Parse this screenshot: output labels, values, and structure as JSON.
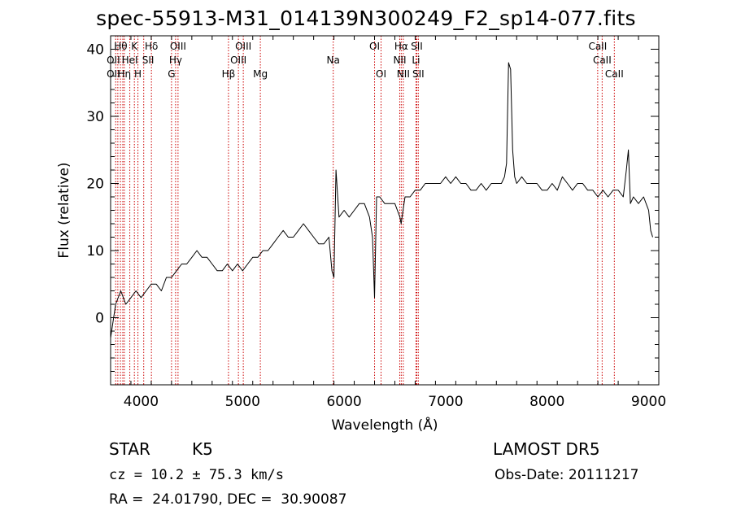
{
  "chart_data": {
    "type": "line",
    "title": "spec-55913-M31_014139N300249_F2_sp14-077.fits",
    "xlabel": "Wavelength (Å)",
    "ylabel": "Flux (relative)",
    "xlim": [
      3700,
      9100
    ],
    "ylim": [
      -10,
      42
    ],
    "xticks": [
      4000,
      5000,
      6000,
      7000,
      8000,
      9000
    ],
    "yticks": [
      0,
      10,
      20,
      30,
      40
    ],
    "grid": false,
    "series": [
      {
        "x": [
          3700,
          3750,
          3800,
          3850,
          3900,
          3950,
          4000,
          4050,
          4100,
          4150,
          4200,
          4250,
          4300,
          4350,
          4400,
          4450,
          4500,
          4550,
          4600,
          4650,
          4700,
          4750,
          4800,
          4850,
          4900,
          4950,
          5000,
          5050,
          5100,
          5150,
          5200,
          5250,
          5300,
          5350,
          5400,
          5450,
          5500,
          5550,
          5600,
          5650,
          5700,
          5750,
          5800,
          5850,
          5880,
          5900,
          5920,
          5950,
          6000,
          6050,
          6100,
          6150,
          6200,
          6250,
          6280,
          6300,
          6320,
          6350,
          6400,
          6450,
          6500,
          6550,
          6562,
          6580,
          6600,
          6650,
          6700,
          6750,
          6800,
          6850,
          6900,
          6950,
          7000,
          7050,
          7100,
          7150,
          7200,
          7250,
          7300,
          7350,
          7400,
          7450,
          7500,
          7550,
          7580,
          7600,
          7620,
          7640,
          7660,
          7680,
          7700,
          7750,
          7800,
          7850,
          7900,
          7950,
          8000,
          8050,
          8100,
          8150,
          8200,
          8250,
          8300,
          8350,
          8400,
          8450,
          8500,
          8550,
          8600,
          8650,
          8700,
          8750,
          8780,
          8800,
          8820,
          8850,
          8900,
          8950,
          9000,
          9020,
          9040
        ],
        "y": [
          -3,
          2,
          4,
          2,
          3,
          4,
          3,
          4,
          5,
          5,
          4,
          6,
          6,
          7,
          8,
          8,
          9,
          10,
          9,
          9,
          8,
          7,
          7,
          8,
          7,
          8,
          7,
          8,
          9,
          9,
          10,
          10,
          11,
          12,
          13,
          12,
          12,
          13,
          14,
          13,
          12,
          11,
          11,
          12,
          7,
          6,
          22,
          15,
          16,
          15,
          16,
          17,
          17,
          15,
          12,
          3,
          18,
          18,
          17,
          17,
          17,
          15,
          14,
          16,
          18,
          18,
          19,
          19,
          20,
          20,
          20,
          20,
          21,
          20,
          21,
          20,
          20,
          19,
          19,
          20,
          19,
          20,
          20,
          20,
          21,
          23,
          38,
          37,
          25,
          21,
          20,
          21,
          20,
          20,
          20,
          19,
          19,
          20,
          19,
          21,
          20,
          19,
          20,
          20,
          19,
          19,
          18,
          19,
          18,
          19,
          19,
          18,
          22,
          25,
          17,
          18,
          17,
          18,
          16,
          13,
          12
        ],
        "color": "#000000"
      }
    ],
    "lines": {
      "positions": [
        3750,
        3771,
        3797,
        3820,
        3835,
        3889,
        3934,
        3969,
        4026,
        4102,
        4300,
        4340,
        4364,
        4861,
        4959,
        5007,
        5175,
        5893,
        6300,
        6364,
        6548,
        6563,
        6583,
        6708,
        6716,
        6731,
        8498,
        8542,
        8662
      ],
      "color": "#cc0000",
      "labels": [
        {
          "text": "Hθ",
          "x": 3800,
          "row": 1
        },
        {
          "text": "K",
          "x": 3934,
          "row": 1
        },
        {
          "text": "Hδ",
          "x": 4102,
          "row": 1
        },
        {
          "text": "OIII",
          "x": 4364,
          "row": 1
        },
        {
          "text": "OIII",
          "x": 5007,
          "row": 1
        },
        {
          "text": "OI",
          "x": 6300,
          "row": 1
        },
        {
          "text": "Hα",
          "x": 6563,
          "row": 1
        },
        {
          "text": "SII",
          "x": 6716,
          "row": 1
        },
        {
          "text": "CaII",
          "x": 8498,
          "row": 1
        },
        {
          "text": "OII",
          "x": 3727,
          "row": 2
        },
        {
          "text": "HeI",
          "x": 3889,
          "row": 2
        },
        {
          "text": "SII",
          "x": 4069,
          "row": 2
        },
        {
          "text": "Hγ",
          "x": 4340,
          "row": 2
        },
        {
          "text": "OIII",
          "x": 4959,
          "row": 2
        },
        {
          "text": "Na",
          "x": 5893,
          "row": 2
        },
        {
          "text": "NII",
          "x": 6548,
          "row": 2
        },
        {
          "text": "Li",
          "x": 6708,
          "row": 2
        },
        {
          "text": "CaII",
          "x": 8542,
          "row": 2
        },
        {
          "text": "OII",
          "x": 3727,
          "row": 3
        },
        {
          "text": "Hη",
          "x": 3835,
          "row": 3
        },
        {
          "text": "H",
          "x": 3969,
          "row": 3
        },
        {
          "text": "G",
          "x": 4300,
          "row": 3
        },
        {
          "text": "Hβ",
          "x": 4861,
          "row": 3
        },
        {
          "text": "Mg",
          "x": 5175,
          "row": 3
        },
        {
          "text": "OI",
          "x": 6364,
          "row": 3
        },
        {
          "text": "NII",
          "x": 6583,
          "row": 3
        },
        {
          "text": "SII",
          "x": 6731,
          "row": 3
        },
        {
          "text": "CaII",
          "x": 8662,
          "row": 3
        }
      ]
    }
  },
  "info": {
    "class": "STAR",
    "subclass": "K5",
    "survey": "LAMOST DR5",
    "cz": "cz = 10.2 ± 75.3 km/s",
    "obs_date": "Obs-Date: 20111217",
    "coords": "RA =  24.01790, DEC =  30.90087"
  }
}
